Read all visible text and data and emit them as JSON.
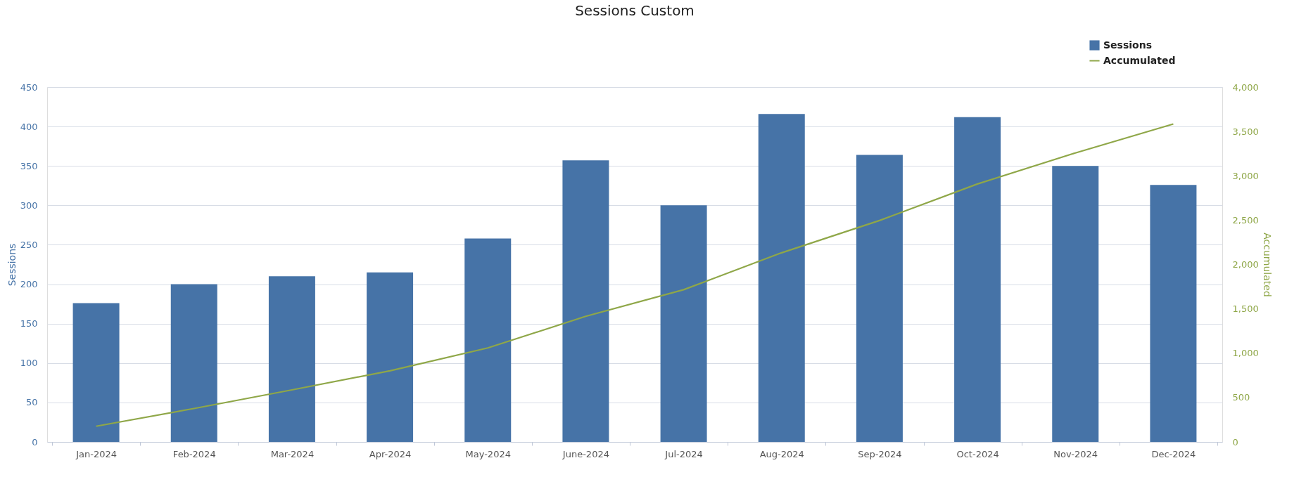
{
  "chart_data": {
    "type": "bar",
    "title": "Sessions Custom",
    "ylabel": "Sessions",
    "y2label": "Accumulated",
    "categories": [
      "Jan-2024",
      "Feb-2024",
      "Mar-2024",
      "Apr-2024",
      "May-2024",
      "June-2024",
      "Jul-2024",
      "Aug-2024",
      "Sep-2024",
      "Oct-2024",
      "Nov-2024",
      "Dec-2024"
    ],
    "series": [
      {
        "name": "Sessions",
        "type": "bar",
        "color": "#4673a7",
        "values": [
          176,
          200,
          210,
          215,
          258,
          357,
          300,
          416,
          364,
          412,
          350,
          326
        ]
      },
      {
        "name": "Accumulated",
        "type": "line",
        "axis": "y2",
        "color": "#8fa748",
        "values": [
          176,
          376,
          586,
          801,
          1059,
          1416,
          1716,
          2132,
          2496,
          2908,
          3258,
          3584
        ]
      }
    ],
    "ylim": [
      0,
      450
    ],
    "yticks": [
      0,
      50,
      100,
      150,
      200,
      250,
      300,
      350,
      400,
      450
    ],
    "y2lim": [
      0,
      4000
    ],
    "y2ticks": [
      0,
      {
        "value": 500,
        "label": "500"
      },
      {
        "value": 1000,
        "label": "1,000"
      },
      {
        "value": 1500,
        "label": "1,500"
      },
      {
        "value": 2000,
        "label": "2,000"
      },
      {
        "value": 2500,
        "label": "2,500"
      },
      {
        "value": 3000,
        "label": "3,000"
      },
      {
        "value": 3500,
        "label": "3,500"
      },
      {
        "value": 4000,
        "label": "4,000"
      }
    ],
    "grid": "y",
    "legend": "top right",
    "marker": "none",
    "line_style": "solid"
  }
}
